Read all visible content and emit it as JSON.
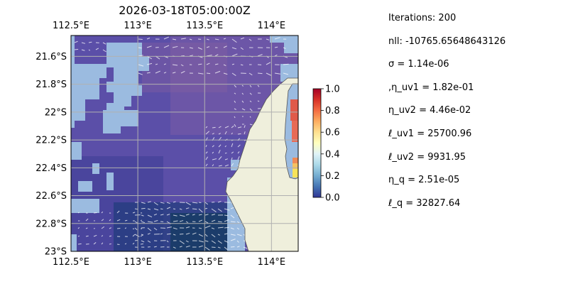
{
  "chart_data": {
    "type": "heatmap",
    "title": "2026-03-18T05:00:00Z",
    "x_ticks": [
      "112.5°E",
      "113°E",
      "113.5°E",
      "114°E"
    ],
    "x_tick_values": [
      112.5,
      113.0,
      113.5,
      114.0
    ],
    "y_ticks": [
      "21.6°S",
      "21.8°S",
      "22°S",
      "22.2°S",
      "22.4°S",
      "22.6°S",
      "22.8°S",
      "23°S"
    ],
    "y_tick_values": [
      -21.6,
      -21.8,
      -22.0,
      -22.2,
      -22.4,
      -22.6,
      -22.8,
      -23.0
    ],
    "xlim": [
      112.5,
      114.2
    ],
    "ylim": [
      -23.0,
      -21.45
    ],
    "grid": true,
    "projection": "geographic map with land mask and current vectors",
    "colorbar": {
      "ticks": [
        "0.0",
        "0.2",
        "0.4",
        "0.6",
        "0.8",
        "1.0"
      ],
      "range": [
        0.0,
        1.0
      ],
      "colormap": "RdYlBu_r",
      "colors": [
        "#313695",
        "#4575b4",
        "#74add1",
        "#abd9e9",
        "#e0f3f8",
        "#ffffbf",
        "#fee090",
        "#fdae61",
        "#f46d43",
        "#d73027",
        "#a50026"
      ]
    },
    "colors": {
      "ocean_field": "#5b4fa8",
      "no_data": "#9bbbe0",
      "land": "#efefdc",
      "vectors": "#ffffff"
    }
  },
  "stats": [
    "Iterations: 200",
    "nll: -10765.65648643126",
    "σ = 1.14e-06",
    ",η_uv1 = 1.82e-01",
    "η_uv2 = 4.46e-02",
    "ℓ_uv1 = 25700.96",
    "ℓ_uv2 = 9931.95",
    "η_q = 2.51e-05",
    "ℓ_q = 32827.64"
  ]
}
